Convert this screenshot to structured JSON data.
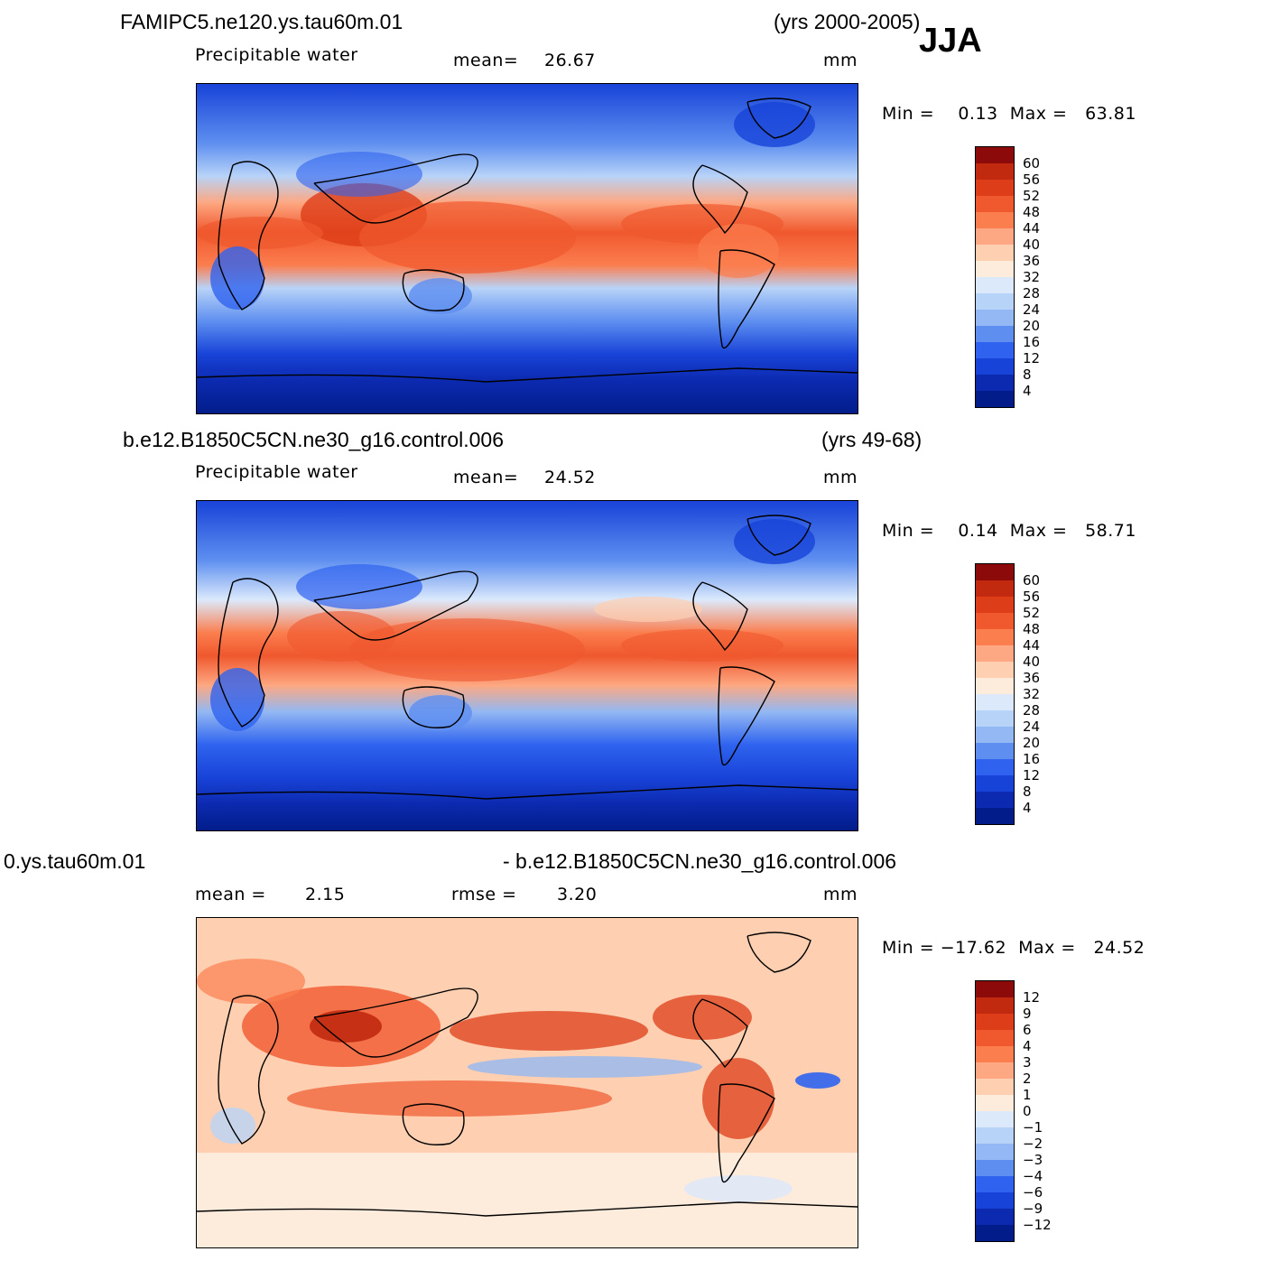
{
  "season": "JJA",
  "units": "mm",
  "panels": [
    {
      "id": "top",
      "case_title": "FAMIPC5.ne120.ys.tau60m.01",
      "years": "(yrs 2000-2005)",
      "variable": "Precipitable water",
      "stat1_label": "mean=",
      "stat1_value": "26.67",
      "units": "mm",
      "minmax": "Min =    0.13  Max =   63.81",
      "colorbar": {
        "labels": [
          "60",
          "56",
          "52",
          "48",
          "44",
          "40",
          "36",
          "32",
          "28",
          "24",
          "20",
          "16",
          "12",
          "8",
          "4"
        ],
        "colors": [
          "#8c0a0a",
          "#c12a0f",
          "#dd3d18",
          "#f0582e",
          "#fb7e4f",
          "#fda882",
          "#fecfb1",
          "#fdebdc",
          "#dbe9fb",
          "#b8d3f8",
          "#93b8f3",
          "#5e8ff0",
          "#2f63ef",
          "#1843d8",
          "#0c2ab0",
          "#021d8a"
        ]
      }
    },
    {
      "id": "middle",
      "case_title": "b.e12.B1850C5CN.ne30_g16.control.006",
      "years": "(yrs 49-68)",
      "variable": "Precipitable water",
      "stat1_label": "mean=",
      "stat1_value": "24.52",
      "units": "mm",
      "minmax": "Min =    0.14  Max =   58.71",
      "colorbar": {
        "labels": [
          "60",
          "56",
          "52",
          "48",
          "44",
          "40",
          "36",
          "32",
          "28",
          "24",
          "20",
          "16",
          "12",
          "8",
          "4"
        ],
        "colors": [
          "#8c0a0a",
          "#c12a0f",
          "#dd3d18",
          "#f0582e",
          "#fb7e4f",
          "#fda882",
          "#fecfb1",
          "#fdebdc",
          "#dbe9fb",
          "#b8d3f8",
          "#93b8f3",
          "#5e8ff0",
          "#2f63ef",
          "#1843d8",
          "#0c2ab0",
          "#021d8a"
        ]
      }
    },
    {
      "id": "bottom",
      "case_title_left": "0.ys.tau60m.01",
      "case_title_right": "- b.e12.B1850C5CN.ne30_g16.control.006",
      "stat1_label": "mean =",
      "stat1_value": "2.15",
      "stat2_label": "rmse =",
      "stat2_value": "3.20",
      "units": "mm",
      "minmax": "Min = −17.62  Max =   24.52",
      "colorbar": {
        "labels": [
          "12",
          "9",
          "6",
          "4",
          "3",
          "2",
          "1",
          "0",
          "−1",
          "−2",
          "−3",
          "−4",
          "−6",
          "−9",
          "−12"
        ],
        "colors": [
          "#8c0a0a",
          "#c12a0f",
          "#dd3d18",
          "#f0582e",
          "#fb7e4f",
          "#fda882",
          "#fecfb1",
          "#fdebdc",
          "#dbe9fb",
          "#b8d3f8",
          "#93b8f3",
          "#5e8ff0",
          "#2f63ef",
          "#1843d8",
          "#0c2ab0",
          "#021d8a"
        ]
      }
    }
  ]
}
